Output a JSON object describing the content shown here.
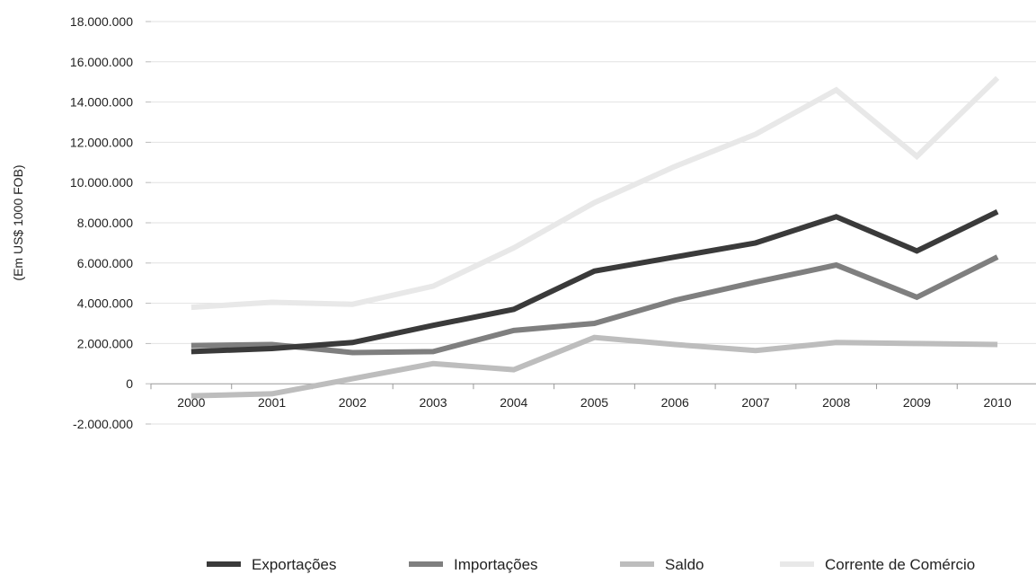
{
  "chart_data": {
    "type": "line",
    "title": "",
    "xlabel": "",
    "ylabel": "(Em US$ 1000 FOB)",
    "x": [
      "2000",
      "2001",
      "2002",
      "2003",
      "2004",
      "2005",
      "2006",
      "2007",
      "2008",
      "2009",
      "2010"
    ],
    "ylim": [
      -2000000,
      18000000
    ],
    "y_ticks": [
      18000000,
      16000000,
      14000000,
      12000000,
      10000000,
      8000000,
      6000000,
      4000000,
      2000000,
      0,
      -2000000
    ],
    "y_tick_labels": [
      "18.000.000",
      "16.000.000",
      "14.000.000",
      "12.000.000",
      "10.000.000",
      "8.000.000",
      "6.000.000",
      "4.000.000",
      "2.000.000",
      "0",
      "-2.000.000"
    ],
    "grid": true,
    "legend_position": "bottom",
    "series": [
      {
        "name": "Exportações",
        "color": "#3a3a3a",
        "values": [
          1600000,
          1750000,
          2050000,
          2900000,
          3700000,
          5600000,
          6300000,
          7000000,
          8300000,
          6600000,
          8550000
        ]
      },
      {
        "name": "Importações",
        "color": "#7f7f7f",
        "values": [
          1900000,
          1950000,
          1550000,
          1600000,
          2650000,
          3000000,
          4150000,
          5050000,
          5900000,
          4300000,
          6300000
        ]
      },
      {
        "name": "Saldo",
        "color": "#bdbdbd",
        "values": [
          -600000,
          -500000,
          250000,
          1000000,
          700000,
          2300000,
          1950000,
          1650000,
          2050000,
          2000000,
          1950000
        ]
      },
      {
        "name": "Corrente de Comércio",
        "color": "#e8e8e8",
        "values": [
          3800000,
          4050000,
          3950000,
          4850000,
          6750000,
          9000000,
          10800000,
          12400000,
          14600000,
          11300000,
          15200000
        ]
      }
    ]
  }
}
